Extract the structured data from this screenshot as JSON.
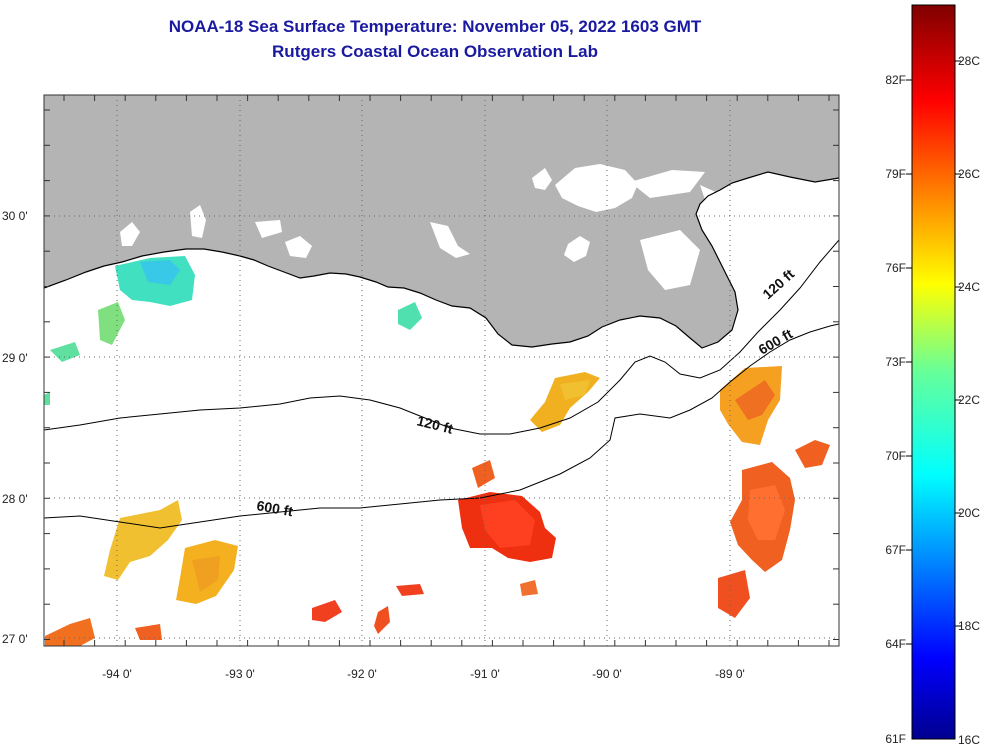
{
  "title": {
    "line1": "NOAA-18 Sea Surface Temperature:  November 05, 2022 1603 GMT",
    "line2": "Rutgers Coastal Ocean Observation Lab"
  },
  "map": {
    "lon_labels": [
      "-94 0'",
      "-93 0'",
      "-92 0'",
      "-91 0'",
      "-90 0'",
      "-89 0'"
    ],
    "lat_labels": [
      "30 0'",
      "29 0'",
      "28 0'",
      "27 0'"
    ],
    "contour_labels": [
      "120 ft",
      "600 ft",
      "120 ft",
      "600 ft"
    ],
    "colors": {
      "land": "#b4b4b4",
      "water": "#ffffff",
      "grid": "#555555"
    }
  },
  "colorbar": {
    "f_labels": [
      "82F",
      "79F",
      "76F",
      "73F",
      "70F",
      "67F",
      "64F",
      "61F"
    ],
    "c_labels": [
      "28C",
      "26C",
      "24C",
      "22C",
      "20C",
      "18C",
      "16C"
    ]
  }
}
